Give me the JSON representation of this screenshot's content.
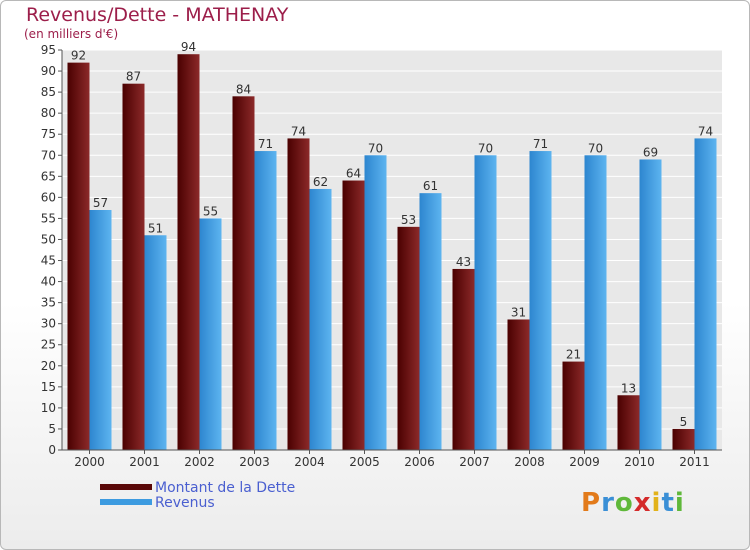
{
  "header": {
    "title": "Revenus/Dette - MATHENAY",
    "subtitle": "(en milliers d'€)"
  },
  "legend": {
    "items": [
      {
        "label": "Montant de la Dette",
        "color": "#7a1515"
      },
      {
        "label": "Revenus",
        "color": "#4aa3e6"
      }
    ]
  },
  "logo": {
    "text": "Proxiti"
  },
  "chart_data": {
    "type": "bar",
    "title": "Revenus/Dette - MATHENAY",
    "ylabel": "(en milliers d'€)",
    "categories": [
      "2000",
      "2001",
      "2002",
      "2003",
      "2004",
      "2005",
      "2006",
      "2007",
      "2008",
      "2009",
      "2010",
      "2011"
    ],
    "series": [
      {
        "name": "Montant de la Dette",
        "color": "#7a1515",
        "values": [
          92,
          87,
          94,
          84,
          74,
          64,
          53,
          43,
          31,
          21,
          13,
          5
        ]
      },
      {
        "name": "Revenus",
        "color": "#4aa3e6",
        "values": [
          57,
          51,
          55,
          71,
          62,
          70,
          61,
          70,
          71,
          70,
          69,
          74
        ]
      }
    ],
    "ylim": [
      0,
      95
    ],
    "yticks": [
      0,
      5,
      10,
      15,
      20,
      25,
      30,
      35,
      40,
      45,
      50,
      55,
      60,
      65,
      70,
      75,
      80,
      85,
      90,
      95
    ],
    "grid": true,
    "legend_position": "bottom-left"
  }
}
